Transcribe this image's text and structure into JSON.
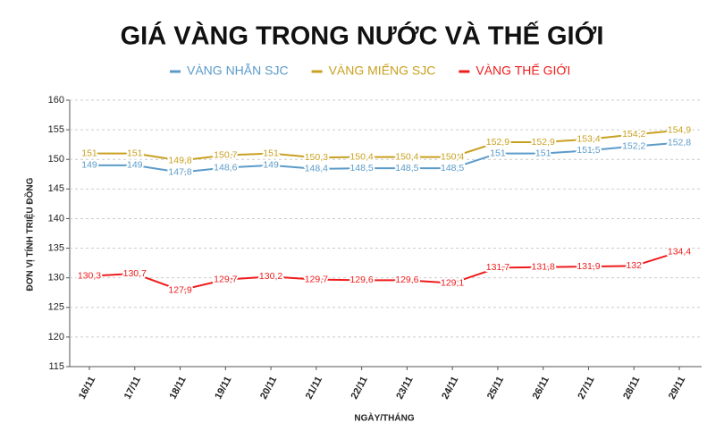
{
  "chart_data": {
    "type": "line",
    "title": "GIÁ VÀNG TRONG NƯỚC VÀ THẾ GIỚI",
    "y_label": "ĐƠN VỊ TÍNH TRIỆU ĐỒNG",
    "x_label": "NGÀY/THÁNG",
    "categories": [
      "16/11",
      "17/11",
      "18/11",
      "19/11",
      "20/11",
      "21/11",
      "22/11",
      "23/11",
      "24/11",
      "25/11",
      "26/11",
      "27/11",
      "28/11",
      "29/11"
    ],
    "series": [
      {
        "name": "VÀNG NHẪN SJC",
        "color": "#5b9bc9",
        "values": [
          149,
          149,
          147.8,
          148.6,
          149,
          148.4,
          148.5,
          148.5,
          148.5,
          151,
          151,
          151.5,
          152.2,
          152.8
        ],
        "value_labels": [
          "149",
          "149",
          "147,8",
          "148,6",
          "149",
          "148,4",
          "148,5",
          "148,5",
          "148,5",
          "151",
          "151",
          "151,5",
          "152,2",
          "152,8"
        ]
      },
      {
        "name": "VÀNG MIẾNG SJC",
        "color": "#c9a020",
        "values": [
          151,
          151,
          149.8,
          150.7,
          151,
          150.3,
          150.4,
          150.4,
          150.4,
          152.9,
          152.9,
          153.4,
          154.2,
          154.9
        ],
        "value_labels": [
          "151",
          "151",
          "149,8",
          "150,7",
          "151",
          "150,3",
          "150,4",
          "150,4",
          "150,4",
          "152,9",
          "152,9",
          "153,4",
          "154,2",
          "154,9"
        ]
      },
      {
        "name": "VÀNG THẾ GIỚI",
        "color": "#ee1c1c",
        "values": [
          130.3,
          130.7,
          127.9,
          129.7,
          130.2,
          129.7,
          129.6,
          129.6,
          129.1,
          131.7,
          131.8,
          131.9,
          132,
          134.4
        ],
        "value_labels": [
          "130,3",
          "130,7",
          "127,9",
          "129,7",
          "130,2",
          "129,7",
          "129,6",
          "129,6",
          "129,1",
          "131,7",
          "131,8",
          "131,9",
          "132",
          "134,4"
        ]
      }
    ],
    "ylim": [
      115,
      160
    ],
    "yticks": [
      115,
      120,
      125,
      130,
      135,
      140,
      145,
      150,
      155,
      160
    ],
    "grid": true
  }
}
